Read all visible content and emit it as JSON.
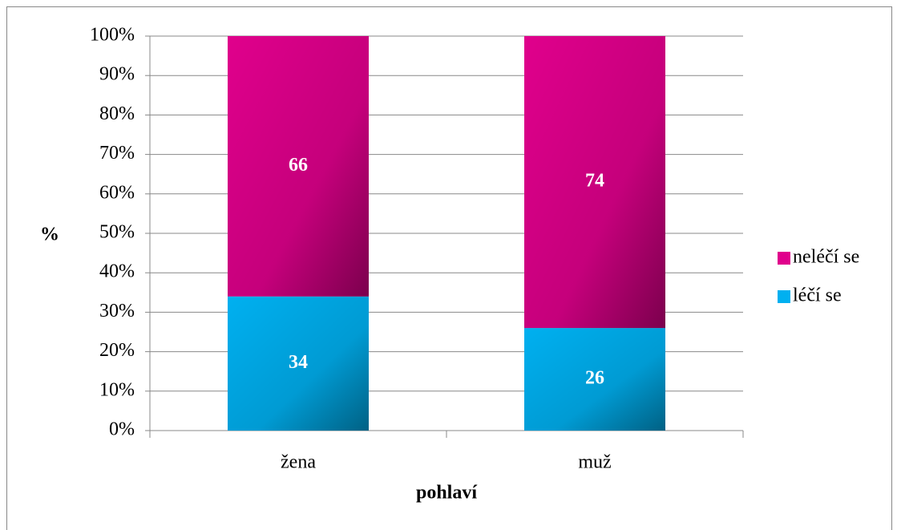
{
  "chart_data": {
    "type": "stacked_bar",
    "categories": [
      "žena",
      "muž"
    ],
    "series": [
      {
        "name": "léčí se",
        "color": "#00b0f0",
        "values": [
          34,
          26
        ]
      },
      {
        "name": "neléčí se",
        "color": "#e0008c",
        "values": [
          66,
          74
        ]
      }
    ],
    "ylabel": "%",
    "xlabel": "pohlaví",
    "ylim": [
      0,
      100
    ],
    "yticks": [
      {
        "value": 0,
        "label": "0%"
      },
      {
        "value": 10,
        "label": "10%"
      },
      {
        "value": 20,
        "label": "20%"
      },
      {
        "value": 30,
        "label": "30%"
      },
      {
        "value": 40,
        "label": "40%"
      },
      {
        "value": 50,
        "label": "50%"
      },
      {
        "value": 60,
        "label": "60%"
      },
      {
        "value": 70,
        "label": "70%"
      },
      {
        "value": 80,
        "label": "80%"
      },
      {
        "value": 90,
        "label": "90%"
      },
      {
        "value": 100,
        "label": "100%"
      }
    ],
    "grid": true,
    "legend": "right"
  }
}
